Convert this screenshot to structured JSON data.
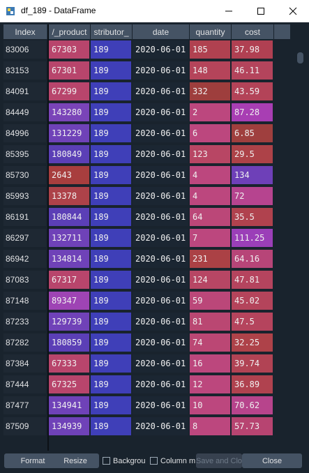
{
  "window": {
    "title": "df_189 - DataFrame"
  },
  "table": {
    "columns": [
      "Index",
      "/_product",
      "stributor_",
      "date",
      "quantity",
      "cost"
    ],
    "rows": [
      {
        "index": "83006",
        "product": "67303",
        "distributor": "189",
        "date": "2020-06-01",
        "quantity": "185",
        "cost": "37.98",
        "colors": [
          "#b8456c",
          "#3f3fb8",
          "#b04150",
          "#b04052"
        ]
      },
      {
        "index": "83153",
        "product": "67301",
        "distributor": "189",
        "date": "2020-06-01",
        "quantity": "148",
        "cost": "46.11",
        "colors": [
          "#b8456c",
          "#3f3fb8",
          "#b5445a",
          "#b4445c"
        ]
      },
      {
        "index": "84091",
        "product": "67299",
        "distributor": "189",
        "date": "2020-06-01",
        "quantity": "332",
        "cost": "43.59",
        "colors": [
          "#b8456c",
          "#3f3fb8",
          "#9e3e3d",
          "#b34358"
        ]
      },
      {
        "index": "84449",
        "product": "143280",
        "distributor": "189",
        "date": "2020-06-01",
        "quantity": "2",
        "cost": "87.28",
        "colors": [
          "#7a44b8",
          "#3f3fb8",
          "#bc477e",
          "#a83eb3"
        ]
      },
      {
        "index": "84996",
        "product": "131229",
        "distributor": "189",
        "date": "2020-06-01",
        "quantity": "6",
        "cost": "6.85",
        "colors": [
          "#6f42b8",
          "#3f3fb8",
          "#bc477e",
          "#9f3f3e"
        ]
      },
      {
        "index": "85395",
        "product": "180849",
        "distributor": "189",
        "date": "2020-06-01",
        "quantity": "123",
        "cost": "29.5",
        "colors": [
          "#5b3fb6",
          "#3f3fb8",
          "#b84664",
          "#ad4248"
        ]
      },
      {
        "index": "85730",
        "product": "2643",
        "distributor": "189",
        "date": "2020-06-01",
        "quantity": "4",
        "cost": "134",
        "colors": [
          "#a83e3e",
          "#3f3fb8",
          "#bc477e",
          "#6e40b8"
        ]
      },
      {
        "index": "85993",
        "product": "13378",
        "distributor": "189",
        "date": "2020-06-01",
        "quantity": "4",
        "cost": "72",
        "colors": [
          "#ad4249",
          "#3f3fb8",
          "#bc477e",
          "#b6448f"
        ]
      },
      {
        "index": "86191",
        "product": "180844",
        "distributor": "189",
        "date": "2020-06-01",
        "quantity": "64",
        "cost": "35.5",
        "colors": [
          "#5b3fb6",
          "#3f3fb8",
          "#bb4778",
          "#b0424e"
        ]
      },
      {
        "index": "86297",
        "product": "132711",
        "distributor": "189",
        "date": "2020-06-01",
        "quantity": "7",
        "cost": "111.25",
        "colors": [
          "#6f42b8",
          "#3f3fb8",
          "#bc477e",
          "#9b3fb8"
        ]
      },
      {
        "index": "86942",
        "product": "134814",
        "distributor": "189",
        "date": "2020-06-01",
        "quantity": "231",
        "cost": "64.16",
        "colors": [
          "#6f42b8",
          "#3f3fb8",
          "#ab4145",
          "#b74578"
        ]
      },
      {
        "index": "87083",
        "product": "67317",
        "distributor": "189",
        "date": "2020-06-01",
        "quantity": "124",
        "cost": "47.81",
        "colors": [
          "#b8456c",
          "#3f3fb8",
          "#b74664",
          "#b5445e"
        ]
      },
      {
        "index": "87148",
        "product": "89347",
        "distributor": "189",
        "date": "2020-06-01",
        "quantity": "59",
        "cost": "45.02",
        "colors": [
          "#9e44b4",
          "#3f3fb8",
          "#bb4779",
          "#b4445b"
        ]
      },
      {
        "index": "87233",
        "product": "129739",
        "distributor": "189",
        "date": "2020-06-01",
        "quantity": "81",
        "cost": "47.5",
        "colors": [
          "#7042b8",
          "#3f3fb8",
          "#ba4772",
          "#b5445d"
        ]
      },
      {
        "index": "87282",
        "product": "180859",
        "distributor": "189",
        "date": "2020-06-01",
        "quantity": "74",
        "cost": "32.25",
        "colors": [
          "#5b3fb6",
          "#3f3fb8",
          "#bb4774",
          "#ae4249"
        ]
      },
      {
        "index": "87384",
        "product": "67333",
        "distributor": "189",
        "date": "2020-06-01",
        "quantity": "16",
        "cost": "39.74",
        "colors": [
          "#b8456c",
          "#3f3fb8",
          "#bc477d",
          "#b14354"
        ]
      },
      {
        "index": "87444",
        "product": "67325",
        "distributor": "189",
        "date": "2020-06-01",
        "quantity": "12",
        "cost": "36.89",
        "colors": [
          "#b8456c",
          "#3f3fb8",
          "#bc477d",
          "#b0424f"
        ]
      },
      {
        "index": "87477",
        "product": "134941",
        "distributor": "189",
        "date": "2020-06-01",
        "quantity": "10",
        "cost": "70.62",
        "colors": [
          "#6f42b8",
          "#3f3fb8",
          "#bc477e",
          "#b7448c"
        ]
      },
      {
        "index": "87509",
        "product": "134939",
        "distributor": "189",
        "date": "2020-06-01",
        "quantity": "8",
        "cost": "57.73",
        "colors": [
          "#6f42b8",
          "#3f3fb8",
          "#bc477e",
          "#b74471"
        ]
      }
    ]
  },
  "bottom": {
    "format": "Format",
    "resize": "Resize",
    "background_label": "Backgrou",
    "column_label": "Column m",
    "save_close": "Save and Clo",
    "close": "Close"
  },
  "colors": {
    "background": "#19232d",
    "header": "#455364",
    "date_cell": "#1b2632",
    "index_cell": "#1e2833"
  }
}
